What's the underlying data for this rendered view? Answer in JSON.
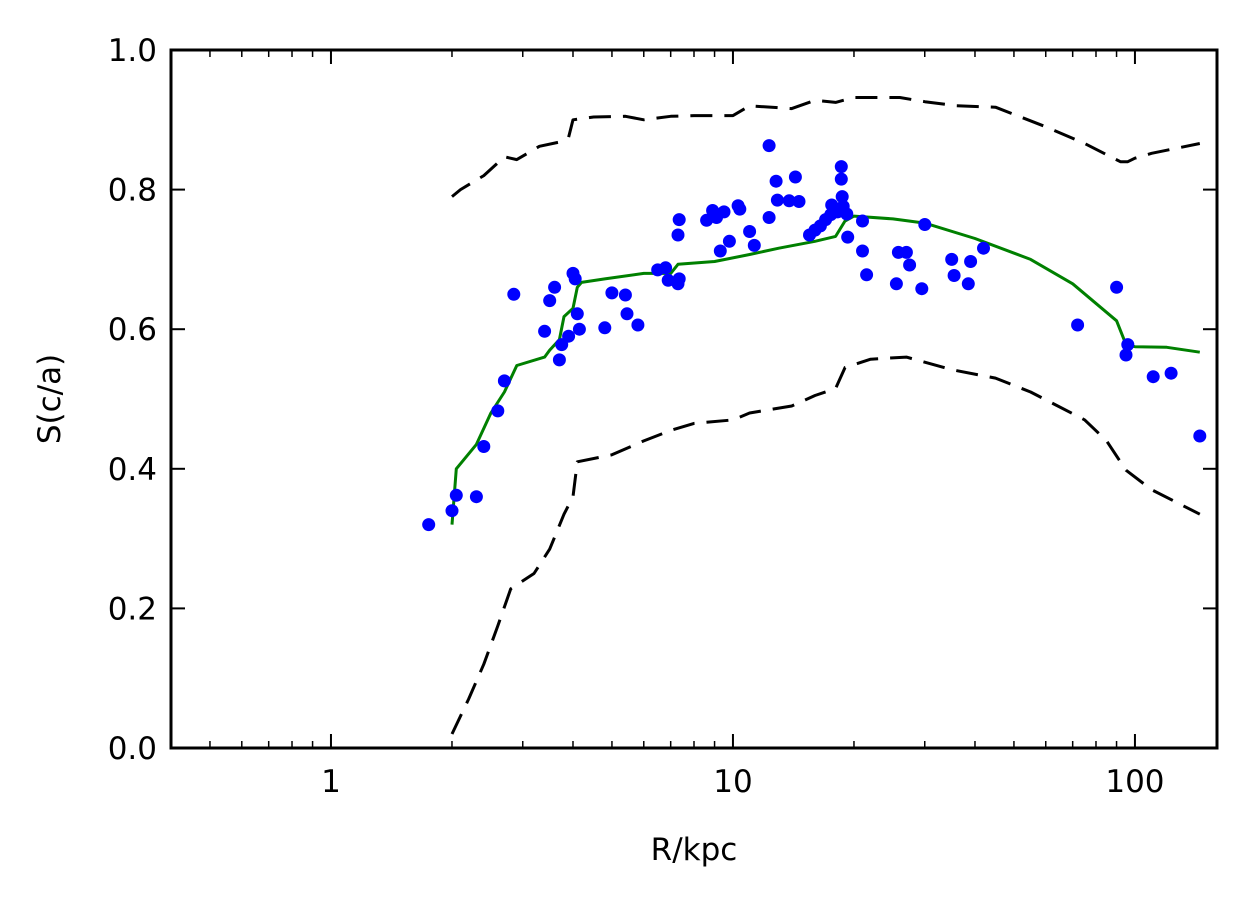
{
  "chart_data": {
    "type": "scatter",
    "title": "",
    "xlabel": "R/kpc",
    "ylabel": "S(c/a)",
    "x_scale": "log",
    "xlim": [
      0.4,
      160
    ],
    "ylim": [
      0.0,
      1.0
    ],
    "grid": false,
    "legend": "none",
    "x_ticks": [
      {
        "value": 1,
        "label": "1"
      },
      {
        "value": 10,
        "label": "10"
      },
      {
        "value": 100,
        "label": "100"
      }
    ],
    "y_ticks": [
      {
        "value": 0.0,
        "label": "0.0"
      },
      {
        "value": 0.2,
        "label": "0.2"
      },
      {
        "value": 0.4,
        "label": "0.4"
      },
      {
        "value": 0.6,
        "label": "0.6"
      },
      {
        "value": 0.8,
        "label": "0.8"
      },
      {
        "value": 1.0,
        "label": "1.0"
      }
    ],
    "series": [
      {
        "kind": "scatter",
        "color": "#0000ff",
        "points": [
          [
            1.75,
            0.32
          ],
          [
            2.0,
            0.34
          ],
          [
            2.05,
            0.362
          ],
          [
            2.3,
            0.36
          ],
          [
            2.4,
            0.432
          ],
          [
            2.6,
            0.483
          ],
          [
            2.7,
            0.526
          ],
          [
            2.85,
            0.65
          ],
          [
            3.4,
            0.597
          ],
          [
            3.5,
            0.641
          ],
          [
            3.6,
            0.66
          ],
          [
            3.7,
            0.556
          ],
          [
            3.75,
            0.578
          ],
          [
            3.9,
            0.59
          ],
          [
            4.0,
            0.68
          ],
          [
            4.05,
            0.672
          ],
          [
            4.1,
            0.622
          ],
          [
            4.15,
            0.6
          ],
          [
            4.8,
            0.602
          ],
          [
            5.0,
            0.652
          ],
          [
            5.4,
            0.649
          ],
          [
            5.45,
            0.622
          ],
          [
            5.8,
            0.606
          ],
          [
            6.5,
            0.685
          ],
          [
            6.8,
            0.688
          ],
          [
            6.9,
            0.67
          ],
          [
            7.3,
            0.665
          ],
          [
            7.35,
            0.672
          ],
          [
            7.3,
            0.735
          ],
          [
            7.35,
            0.757
          ],
          [
            8.6,
            0.756
          ],
          [
            8.9,
            0.77
          ],
          [
            9.1,
            0.76
          ],
          [
            9.3,
            0.712
          ],
          [
            9.5,
            0.768
          ],
          [
            9.8,
            0.726
          ],
          [
            10.3,
            0.777
          ],
          [
            10.4,
            0.772
          ],
          [
            11.0,
            0.74
          ],
          [
            11.3,
            0.72
          ],
          [
            12.3,
            0.863
          ],
          [
            12.3,
            0.76
          ],
          [
            12.8,
            0.812
          ],
          [
            12.9,
            0.785
          ],
          [
            13.8,
            0.784
          ],
          [
            14.3,
            0.818
          ],
          [
            14.6,
            0.783
          ],
          [
            15.5,
            0.735
          ],
          [
            16.0,
            0.742
          ],
          [
            16.5,
            0.748
          ],
          [
            17.0,
            0.757
          ],
          [
            17.5,
            0.764
          ],
          [
            17.6,
            0.778
          ],
          [
            18.2,
            0.768
          ],
          [
            18.3,
            0.77
          ],
          [
            18.6,
            0.833
          ],
          [
            18.6,
            0.815
          ],
          [
            18.7,
            0.79
          ],
          [
            18.8,
            0.776
          ],
          [
            19.2,
            0.765
          ],
          [
            19.3,
            0.732
          ],
          [
            21.0,
            0.755
          ],
          [
            21.0,
            0.712
          ],
          [
            21.5,
            0.678
          ],
          [
            25.5,
            0.665
          ],
          [
            25.8,
            0.71
          ],
          [
            27.0,
            0.71
          ],
          [
            27.5,
            0.692
          ],
          [
            29.5,
            0.658
          ],
          [
            30.0,
            0.75
          ],
          [
            35.0,
            0.7
          ],
          [
            35.5,
            0.677
          ],
          [
            38.5,
            0.665
          ],
          [
            39.0,
            0.697
          ],
          [
            42.0,
            0.716
          ],
          [
            72.0,
            0.606
          ],
          [
            90.0,
            0.66
          ],
          [
            95.0,
            0.563
          ],
          [
            96.0,
            0.578
          ],
          [
            111.0,
            0.532
          ],
          [
            123.0,
            0.537
          ],
          [
            145.0,
            0.447
          ]
        ]
      },
      {
        "kind": "line",
        "color": "#008000",
        "style": "solid",
        "points": [
          [
            2.0,
            0.32
          ],
          [
            2.05,
            0.4
          ],
          [
            2.3,
            0.435
          ],
          [
            2.5,
            0.48
          ],
          [
            2.7,
            0.51
          ],
          [
            2.9,
            0.548
          ],
          [
            3.4,
            0.56
          ],
          [
            3.5,
            0.57
          ],
          [
            3.7,
            0.585
          ],
          [
            3.8,
            0.618
          ],
          [
            4.0,
            0.63
          ],
          [
            4.1,
            0.66
          ],
          [
            4.2,
            0.667
          ],
          [
            4.8,
            0.672
          ],
          [
            6.0,
            0.68
          ],
          [
            7.0,
            0.68
          ],
          [
            7.3,
            0.693
          ],
          [
            9.0,
            0.697
          ],
          [
            11.0,
            0.707
          ],
          [
            13.0,
            0.716
          ],
          [
            16.0,
            0.726
          ],
          [
            18.0,
            0.733
          ],
          [
            19.0,
            0.755
          ],
          [
            20.0,
            0.762
          ],
          [
            25.0,
            0.758
          ],
          [
            30.0,
            0.752
          ],
          [
            40.0,
            0.73
          ],
          [
            55.0,
            0.7
          ],
          [
            70.0,
            0.665
          ],
          [
            90.0,
            0.612
          ],
          [
            95.0,
            0.578
          ],
          [
            100.0,
            0.575
          ],
          [
            120.0,
            0.574
          ],
          [
            145.0,
            0.567
          ]
        ]
      },
      {
        "kind": "line",
        "color": "#000000",
        "style": "dashed",
        "points": [
          [
            2.0,
            0.79
          ],
          [
            2.1,
            0.8
          ],
          [
            2.4,
            0.82
          ],
          [
            2.7,
            0.847
          ],
          [
            2.9,
            0.843
          ],
          [
            3.3,
            0.862
          ],
          [
            3.7,
            0.868
          ],
          [
            3.9,
            0.875
          ],
          [
            4.0,
            0.9
          ],
          [
            4.5,
            0.904
          ],
          [
            5.4,
            0.905
          ],
          [
            6.0,
            0.9
          ],
          [
            7.0,
            0.905
          ],
          [
            8.0,
            0.906
          ],
          [
            10.0,
            0.906
          ],
          [
            11.0,
            0.92
          ],
          [
            14.0,
            0.916
          ],
          [
            16.0,
            0.928
          ],
          [
            18.0,
            0.925
          ],
          [
            20.0,
            0.932
          ],
          [
            26.0,
            0.932
          ],
          [
            30.0,
            0.926
          ],
          [
            36.0,
            0.92
          ],
          [
            45.0,
            0.918
          ],
          [
            60.0,
            0.89
          ],
          [
            75.0,
            0.866
          ],
          [
            92.0,
            0.84
          ],
          [
            96.0,
            0.84
          ],
          [
            100.0,
            0.845
          ],
          [
            110.0,
            0.852
          ],
          [
            145.0,
            0.866
          ]
        ]
      },
      {
        "kind": "line",
        "color": "#000000",
        "style": "dashed",
        "points": [
          [
            2.0,
            0.02
          ],
          [
            2.2,
            0.07
          ],
          [
            2.4,
            0.12
          ],
          [
            2.6,
            0.175
          ],
          [
            2.8,
            0.228
          ],
          [
            3.2,
            0.25
          ],
          [
            3.5,
            0.285
          ],
          [
            3.8,
            0.335
          ],
          [
            4.0,
            0.36
          ],
          [
            4.1,
            0.41
          ],
          [
            5.0,
            0.42
          ],
          [
            6.0,
            0.44
          ],
          [
            7.0,
            0.455
          ],
          [
            8.0,
            0.465
          ],
          [
            10.0,
            0.47
          ],
          [
            11.0,
            0.48
          ],
          [
            14.0,
            0.49
          ],
          [
            16.0,
            0.505
          ],
          [
            18.0,
            0.515
          ],
          [
            19.0,
            0.545
          ],
          [
            22.0,
            0.557
          ],
          [
            27.0,
            0.56
          ],
          [
            35.0,
            0.542
          ],
          [
            45.0,
            0.53
          ],
          [
            55.0,
            0.51
          ],
          [
            75.0,
            0.47
          ],
          [
            85.0,
            0.44
          ],
          [
            95.0,
            0.398
          ],
          [
            110.0,
            0.37
          ],
          [
            145.0,
            0.335
          ]
        ]
      }
    ]
  }
}
